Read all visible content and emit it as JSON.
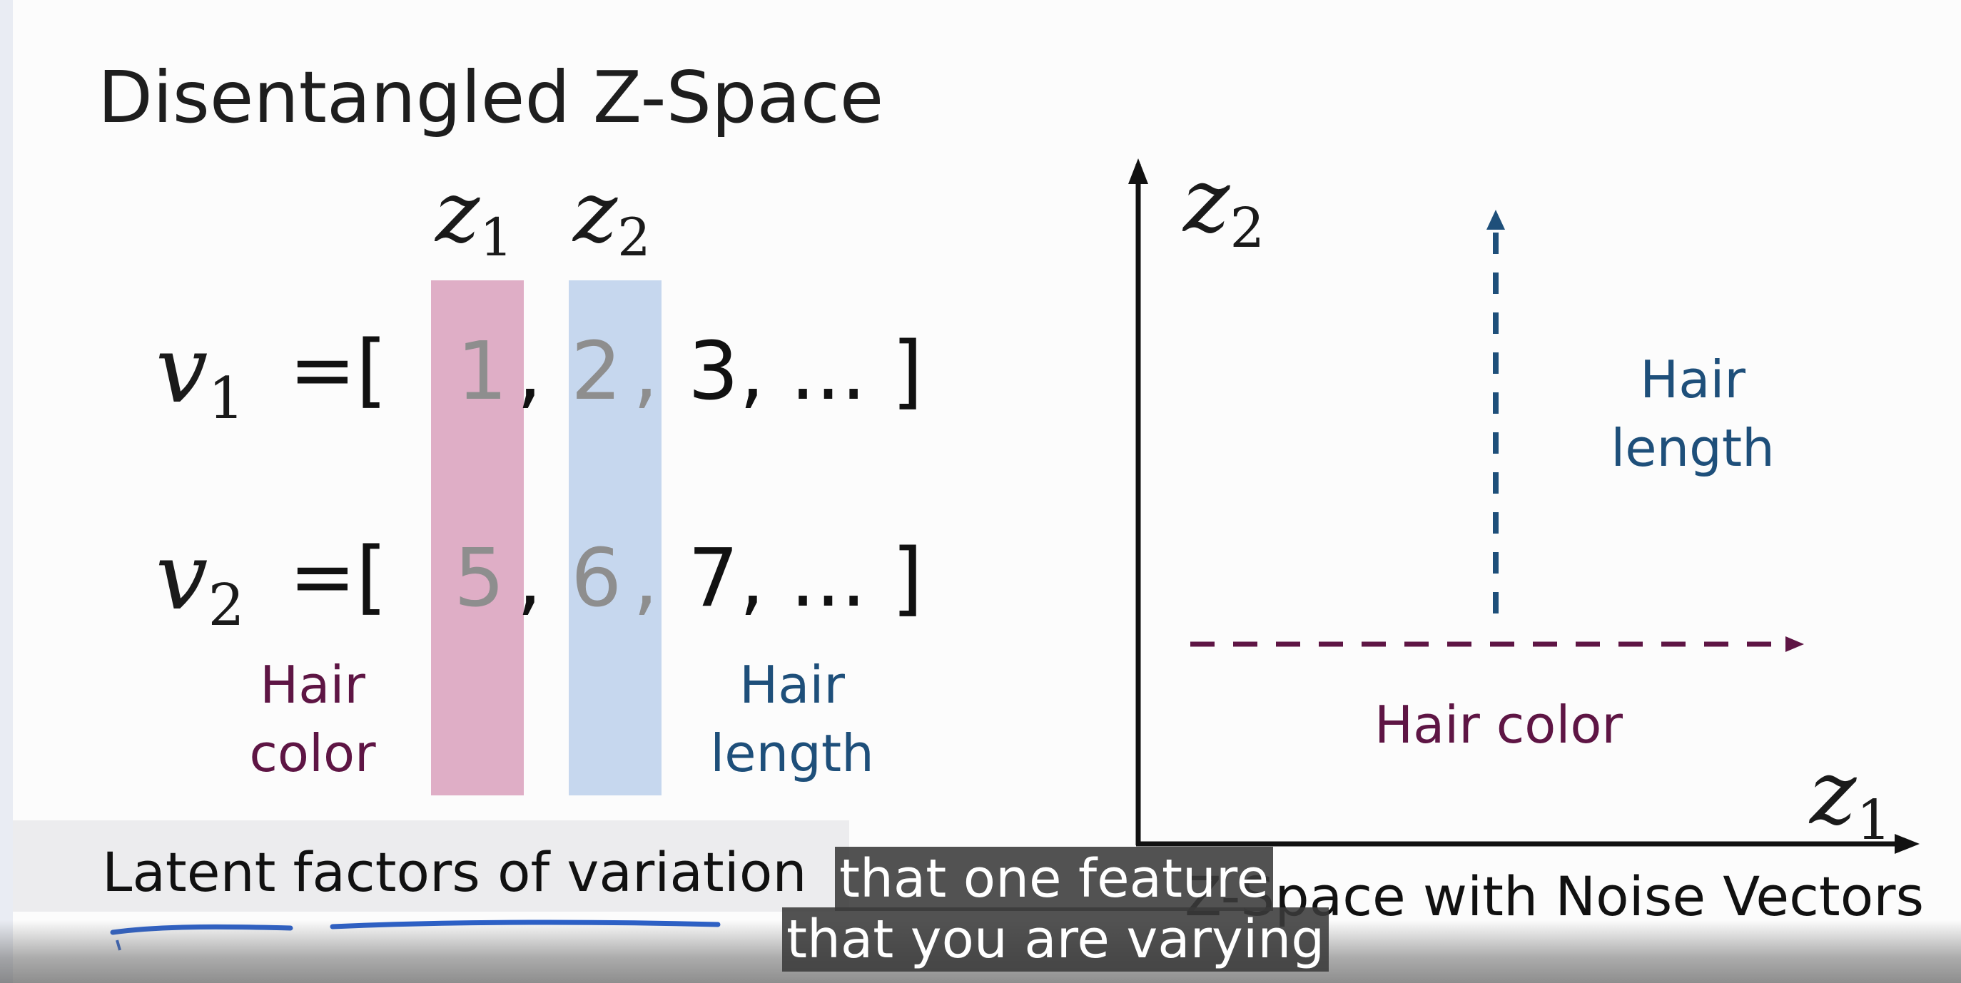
{
  "slide": {
    "title": "Disentangled Z-Space",
    "columns": {
      "z1": {
        "base": "z",
        "sub": "1"
      },
      "z2": {
        "base": "z",
        "sub": "2"
      }
    },
    "vectors": [
      {
        "name": {
          "base": "v",
          "sub": "1"
        },
        "equals": "=[",
        "v1": "1",
        "v2": "2",
        "v3": "3",
        "tail": ", ... ]"
      },
      {
        "name": {
          "base": "v",
          "sub": "2"
        },
        "equals": "=[",
        "v1": "5",
        "v2": "6",
        "v3": "7",
        "tail": ", ... ]"
      }
    ],
    "comma": ",",
    "labels": {
      "hair_color": "Hair\ncolor",
      "hair_length": "Hair\nlength"
    },
    "footer": "Latent factors of variation"
  },
  "plot": {
    "x_axis": {
      "base": "z",
      "sub": "1"
    },
    "y_axis": {
      "base": "z",
      "sub": "2"
    },
    "vertical_arrow_label": "Hair\nlength",
    "horizontal_arrow_label": "Hair color",
    "caption": "Z-Space with Noise Vectors"
  },
  "subtitles": {
    "line1": "that one feature",
    "line2": "that you are varying"
  },
  "colors": {
    "pink_band": "#dfaec6",
    "blue_band": "#c6d7ee",
    "hair_color_purple": "#5e1544",
    "hair_length_blue": "#1e4f7a",
    "annotation_underline": "#2a5fc9"
  }
}
